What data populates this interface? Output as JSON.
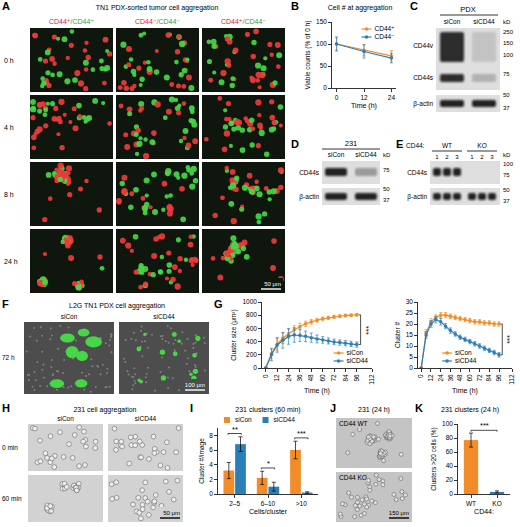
{
  "panels": {
    "A": {
      "letter": "A",
      "title": "TN1 PDX-sorted tumor cell aggregation",
      "columns": [
        [
          {
            "text": "CD44⁺",
            "color": "#e8202a"
          },
          {
            "text": "/CD44⁺",
            "color": "#2f9e44"
          }
        ],
        [
          {
            "text": "CD44⁻",
            "color": "#e8202a"
          },
          {
            "text": "/CD44⁻",
            "color": "#2f9e44"
          }
        ],
        [
          {
            "text": "CD44⁺",
            "color": "#e8202a"
          },
          {
            "text": "/CD44⁻",
            "color": "#2f9e44"
          }
        ]
      ],
      "rows": [
        "0 h",
        "4 h",
        "8 h",
        "24 h"
      ],
      "scale_bar": "50 μm"
    },
    "C": {
      "letter": "C",
      "header": "PDX",
      "lanes": [
        "siCon",
        "siCD44"
      ],
      "bands": [
        "CD44v",
        "CD44s",
        "β-actin"
      ],
      "unit": "kD",
      "markers": [
        250,
        150,
        100,
        75,
        50,
        37
      ]
    },
    "D": {
      "letter": "D",
      "header": "231",
      "lanes": [
        "siCon",
        "siCD44"
      ],
      "bands": [
        "CD44s",
        "β-actin"
      ],
      "unit": "kD",
      "markers": [
        75,
        50,
        37
      ]
    },
    "E": {
      "letter": "E",
      "group_label": "CD44:",
      "groups": [
        "WT",
        "KO"
      ],
      "lanes": [
        "1",
        "2",
        "3",
        "1",
        "2",
        "3"
      ],
      "bands": [
        "CD44s",
        "β-actin"
      ],
      "unit": "kD",
      "markers": [
        100,
        75,
        50,
        37
      ]
    },
    "F": {
      "letter": "F",
      "title": "L2G TN1 PDX cell aggregation",
      "columns": [
        "siCon",
        "siCD44"
      ],
      "rows": [
        "72 h"
      ],
      "scale_bar": "100 μm"
    },
    "H": {
      "letter": "H",
      "title": "231 cell aggregation",
      "columns": [
        "siCon",
        "siCD44"
      ],
      "rows": [
        "0 min",
        "60 min"
      ],
      "scale_bar": "50 μm"
    },
    "J": {
      "letter": "J",
      "title": "231 (24 h)",
      "rows": [
        "CD44 WT",
        "CD44 KO"
      ],
      "scale_bar": "150 μm"
    }
  },
  "chart_data": [
    {
      "panel": "B",
      "type": "line",
      "title": "Cell # at aggregation",
      "x_label": "Time (h)",
      "y_label": "Viable counts (% of 0 h)",
      "x": [
        0,
        12,
        24
      ],
      "xlim": [
        -2,
        26
      ],
      "xticks": [
        0,
        12,
        24
      ],
      "ylim": [
        0,
        150
      ],
      "yticks": [
        0,
        50,
        100,
        150
      ],
      "grid": false,
      "legend": "upper right",
      "marker": "circle",
      "series": [
        {
          "name": "CD44⁺",
          "color": "#f28c28",
          "values": [
            100,
            86,
            73
          ],
          "error": [
            14,
            13,
            12
          ]
        },
        {
          "name": "CD44⁻",
          "color": "#2a7fb8",
          "values": [
            100,
            83,
            68
          ],
          "error": [
            16,
            15,
            11
          ]
        }
      ]
    },
    {
      "panel": "G",
      "type": "line",
      "x_label": "Time (h)",
      "y_label": "Cluster size (μm²)",
      "x": [
        0,
        6,
        12,
        18,
        24,
        30,
        36,
        42,
        48,
        54,
        60,
        66,
        72,
        78,
        84,
        90,
        96
      ],
      "xlim": [
        -4,
        112
      ],
      "xticks": [
        0,
        12,
        24,
        36,
        48,
        60,
        72,
        84,
        96,
        112
      ],
      "ylim": [
        0,
        1000
      ],
      "yticks": [
        0,
        200,
        400,
        600,
        800,
        1000
      ],
      "grid": false,
      "legend": "lower right",
      "marker": "circle",
      "annotations": [
        "***"
      ],
      "series": [
        {
          "name": "siCon",
          "color": "#f28c28",
          "values": [
            0,
            220,
            360,
            450,
            520,
            580,
            630,
            670,
            700,
            725,
            745,
            760,
            775,
            785,
            795,
            800,
            805
          ],
          "error": [
            0,
            80,
            90,
            80,
            70,
            60,
            50,
            40,
            35,
            30,
            28,
            25,
            25,
            22,
            20,
            20,
            20
          ]
        },
        {
          "name": "siCD44",
          "color": "#2a7fb8",
          "values": [
            0,
            200,
            350,
            420,
            480,
            500,
            495,
            480,
            460,
            440,
            425,
            410,
            395,
            385,
            375,
            365,
            355
          ],
          "error": [
            0,
            90,
            110,
            120,
            120,
            110,
            95,
            80,
            70,
            60,
            50,
            45,
            42,
            40,
            40,
            40,
            40
          ]
        }
      ]
    },
    {
      "type": "line",
      "x_label": "Time (h)",
      "y_label": "Cluster #",
      "x": [
        0,
        6,
        12,
        18,
        24,
        30,
        36,
        42,
        48,
        54,
        60,
        66,
        72,
        78,
        84,
        90,
        96
      ],
      "xlim": [
        -4,
        112
      ],
      "xticks": [
        0,
        12,
        24,
        36,
        48,
        60,
        72,
        84,
        96,
        112
      ],
      "ylim": [
        0,
        30
      ],
      "yticks": [
        0,
        5,
        10,
        15,
        20,
        25,
        30
      ],
      "grid": false,
      "legend": "bottom",
      "marker": "circle",
      "annotations": [
        "***"
      ],
      "series": [
        {
          "name": "siCon",
          "color": "#f28c28",
          "values": [
            0,
            16,
            21,
            23,
            24,
            24,
            23.5,
            23,
            22.5,
            22,
            21.5,
            21,
            21,
            20.5,
            20.5,
            20,
            20
          ],
          "error": [
            0,
            1.5,
            1.5,
            1.2,
            1.2,
            1.2,
            1,
            1,
            1,
            1,
            1,
            1,
            1,
            1,
            1,
            1,
            1
          ]
        },
        {
          "name": "siCD44",
          "color": "#2a7fb8",
          "values": [
            0,
            15,
            20,
            22,
            21,
            19,
            17,
            15.5,
            14,
            13,
            12,
            11,
            10,
            9,
            8,
            7,
            6
          ],
          "error": [
            0,
            1.5,
            1.5,
            1.5,
            1.5,
            1.2,
            1.2,
            1,
            1,
            1,
            1,
            1,
            1,
            1,
            1,
            1,
            1
          ]
        }
      ]
    },
    {
      "panel": "I",
      "type": "bar",
      "title": "231 clusters (60 min)",
      "x_label": "Cells/cluster",
      "y_label": "Cluster #/image",
      "categories": [
        "2–5",
        "6–10",
        ">10"
      ],
      "ylim": [
        0,
        9
      ],
      "yticks": [
        0,
        2,
        4,
        6,
        8
      ],
      "grid": false,
      "legend": "top",
      "annotations": [
        "**",
        "*",
        "***"
      ],
      "series": [
        {
          "name": "siCon",
          "color": "#f28c28",
          "values": [
            3.2,
            2.2,
            6.0
          ],
          "error": [
            1.1,
            0.9,
            1.2
          ]
        },
        {
          "name": "siCD44",
          "color": "#2a7fb8",
          "values": [
            6.8,
            1.0,
            0.2
          ],
          "error": [
            1.0,
            0.6,
            0.1
          ]
        }
      ]
    },
    {
      "panel": "K",
      "type": "bar",
      "title": "231 clusters (24 h)",
      "x_label": "CD44:",
      "y_label": "Clusters >20 cells (%)",
      "categories": [
        "WT",
        "KO"
      ],
      "values": [
        77,
        3
      ],
      "error": [
        10,
        1.5
      ],
      "colors": [
        "#f28c28",
        "#2a7fb8"
      ],
      "ylim": [
        0,
        100
      ],
      "yticks": [
        0,
        20,
        40,
        60,
        80,
        100
      ],
      "grid": false,
      "annotations": [
        "***"
      ]
    }
  ]
}
